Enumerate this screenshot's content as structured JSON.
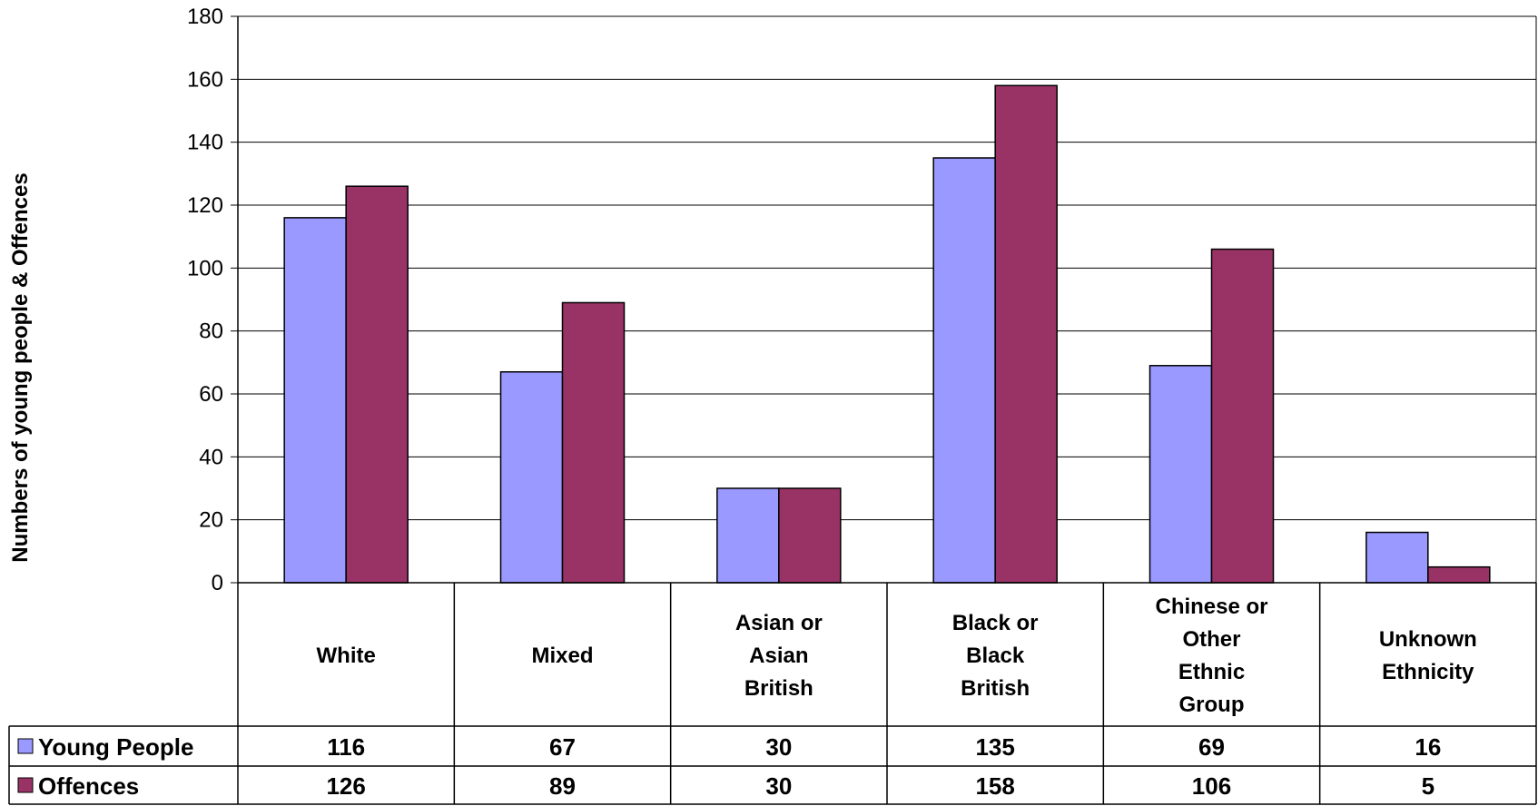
{
  "chart_data": {
    "type": "bar",
    "title": "",
    "xlabel": "",
    "ylabel": "Numbers of young people & Offences",
    "ylim": [
      0,
      180
    ],
    "yticks": [
      0,
      20,
      40,
      60,
      80,
      100,
      120,
      140,
      160,
      180
    ],
    "grid": true,
    "legend": "data-table-left",
    "categories": [
      [
        "White"
      ],
      [
        "Mixed"
      ],
      [
        "Asian or",
        "Asian",
        "British"
      ],
      [
        "Black or",
        "Black",
        "British"
      ],
      [
        "Chinese or",
        "Other",
        "Ethnic",
        "Group"
      ],
      [
        "Unknown",
        "Ethnicity"
      ]
    ],
    "series": [
      {
        "name": "Young People",
        "color": "#9999ff",
        "values": [
          116,
          67,
          30,
          135,
          69,
          16
        ]
      },
      {
        "name": "Offences",
        "color": "#993366",
        "values": [
          126,
          89,
          30,
          158,
          106,
          5
        ]
      }
    ]
  }
}
